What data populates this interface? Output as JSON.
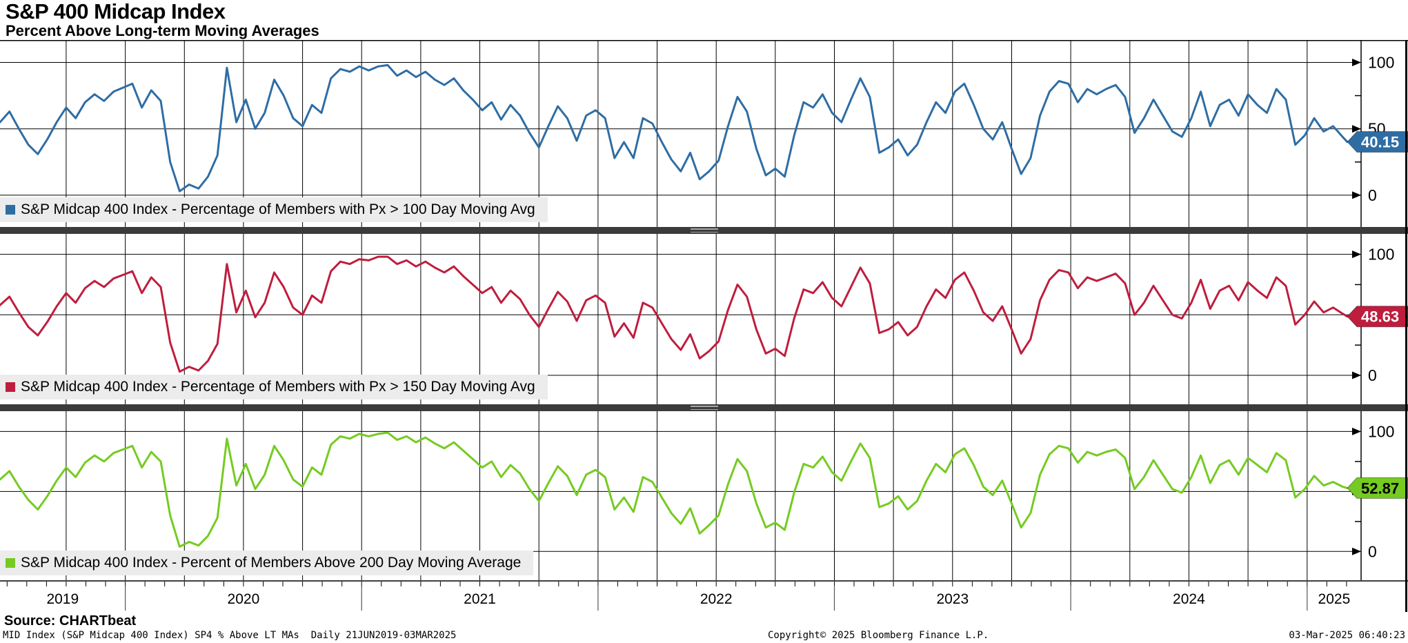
{
  "header": {
    "title": "S&P 400 Midcap Index",
    "subtitle": "Percent Above Long-term Moving Averages"
  },
  "footer": {
    "source": "Source: CHARTbeat",
    "meta": "MID Index (S&P Midcap 400 Index) SP4 % Above LT MAs  Daily 21JUN2019-03MAR2025",
    "copyright": "Copyright© 2025 Bloomberg Finance L.P.",
    "timestamp": "03-Mar-2025 06:40:23"
  },
  "chart_data": {
    "type": "line",
    "title": "S&P 400 Midcap Index - Percent Above Long-term Moving Averages",
    "x_axis": {
      "unit": "decimal_year",
      "start": 2019.47,
      "end": 2025.17,
      "step": 0.04,
      "years": [
        "2019",
        "2020",
        "2021",
        "2022",
        "2023",
        "2024",
        "2025"
      ],
      "gridline_interval_years": 0.25
    },
    "y_axis": {
      "min": 0,
      "max": 100,
      "major_ticks": [
        0,
        50,
        100
      ],
      "minor_ticks": [
        25,
        75
      ]
    },
    "panels": [
      {
        "legend": "S&P Midcap 400 Index - Percentage of Members with Px > 100 Day Moving Avg",
        "color": "#2e6da4",
        "badge_text_color": "#ffffff",
        "last_value": "40.15",
        "values": [
          55,
          63,
          50,
          38,
          31,
          42,
          55,
          66,
          58,
          70,
          76,
          71,
          78,
          81,
          84,
          66,
          79,
          71,
          25,
          3,
          8,
          5,
          14,
          30,
          96,
          55,
          72,
          50,
          62,
          87,
          75,
          58,
          52,
          68,
          62,
          88,
          95,
          93,
          97,
          94,
          97,
          98,
          90,
          94,
          89,
          93,
          87,
          83,
          88,
          79,
          72,
          64,
          70,
          57,
          68,
          60,
          47,
          36,
          52,
          67,
          58,
          41,
          60,
          64,
          58,
          28,
          40,
          28,
          58,
          54,
          40,
          27,
          18,
          32,
          12,
          18,
          26,
          52,
          74,
          63,
          35,
          15,
          20,
          14,
          45,
          70,
          66,
          76,
          62,
          55,
          72,
          88,
          74,
          32,
          36,
          42,
          30,
          38,
          55,
          70,
          62,
          78,
          84,
          68,
          50,
          42,
          55,
          35,
          16,
          28,
          60,
          78,
          86,
          84,
          70,
          80,
          76,
          80,
          83,
          74,
          47,
          58,
          72,
          60,
          48,
          44,
          58,
          78,
          52,
          68,
          72,
          60,
          76,
          68,
          62,
          80,
          72,
          38,
          45,
          58,
          48,
          52,
          44,
          40.15
        ]
      },
      {
        "legend": "S&P Midcap 400 Index - Percentage of Members with Px > 150 Day Moving Avg",
        "color": "#bf1d3e",
        "badge_text_color": "#ffffff",
        "last_value": "48.63",
        "values": [
          58,
          65,
          52,
          40,
          33,
          44,
          57,
          68,
          60,
          72,
          78,
          73,
          80,
          83,
          86,
          68,
          81,
          73,
          27,
          3,
          7,
          4,
          12,
          26,
          92,
          52,
          70,
          48,
          60,
          85,
          73,
          56,
          50,
          66,
          60,
          86,
          94,
          92,
          96,
          95,
          98,
          98,
          92,
          95,
          90,
          94,
          89,
          85,
          90,
          82,
          75,
          68,
          73,
          60,
          70,
          63,
          50,
          40,
          55,
          69,
          61,
          45,
          62,
          66,
          60,
          32,
          43,
          31,
          60,
          56,
          43,
          30,
          21,
          34,
          14,
          20,
          28,
          54,
          75,
          65,
          38,
          18,
          22,
          16,
          47,
          71,
          68,
          77,
          64,
          57,
          73,
          89,
          76,
          35,
          38,
          44,
          33,
          40,
          57,
          71,
          64,
          79,
          85,
          70,
          52,
          45,
          57,
          38,
          18,
          30,
          62,
          79,
          87,
          85,
          72,
          81,
          78,
          81,
          84,
          76,
          50,
          60,
          74,
          62,
          50,
          47,
          60,
          79,
          55,
          70,
          74,
          62,
          77,
          70,
          64,
          81,
          74,
          42,
          50,
          61,
          52,
          56,
          51,
          48.63
        ]
      },
      {
        "legend": "S&P Midcap 400 Index - Percent of Members Above 200 Day Moving Average",
        "color": "#75cb21",
        "badge_text_color": "#000000",
        "last_value": "52.87",
        "values": [
          60,
          67,
          54,
          43,
          35,
          46,
          59,
          70,
          62,
          74,
          80,
          75,
          82,
          85,
          88,
          70,
          83,
          75,
          30,
          4,
          8,
          5,
          13,
          28,
          94,
          55,
          73,
          52,
          64,
          88,
          76,
          60,
          54,
          70,
          64,
          89,
          96,
          94,
          98,
          96,
          98,
          99,
          93,
          96,
          91,
          95,
          90,
          86,
          91,
          84,
          77,
          70,
          75,
          62,
          72,
          65,
          52,
          42,
          57,
          71,
          63,
          47,
          64,
          68,
          62,
          35,
          45,
          33,
          62,
          58,
          45,
          32,
          23,
          36,
          15,
          22,
          30,
          56,
          77,
          67,
          40,
          20,
          24,
          18,
          49,
          73,
          70,
          79,
          66,
          59,
          75,
          90,
          78,
          37,
          40,
          46,
          35,
          42,
          59,
          73,
          66,
          81,
          86,
          72,
          54,
          47,
          59,
          40,
          20,
          32,
          64,
          81,
          88,
          86,
          74,
          83,
          80,
          83,
          85,
          78,
          52,
          62,
          76,
          64,
          52,
          49,
          62,
          80,
          57,
          72,
          76,
          64,
          78,
          72,
          66,
          82,
          76,
          45,
          52,
          63,
          55,
          58,
          54,
          52.87
        ]
      }
    ]
  }
}
